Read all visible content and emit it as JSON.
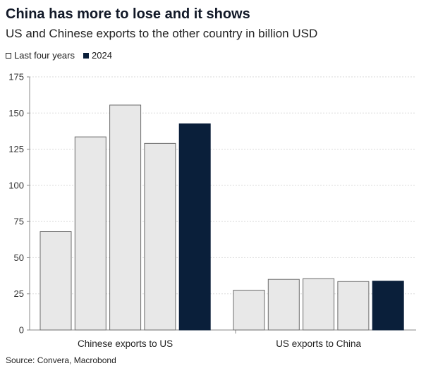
{
  "chart_data": {
    "type": "bar",
    "title": "China has more to lose and it shows",
    "subtitle": "US and Chinese exports to the other country in billion USD",
    "categories": [
      "Chinese exports to US",
      "US exports to China"
    ],
    "series": [
      {
        "name": "Last four years",
        "values": [
          [
            68,
            133.5,
            155.5,
            129
          ],
          [
            27.5,
            35,
            35.5,
            33.5
          ]
        ]
      },
      {
        "name": "2024",
        "values": [
          142.5,
          33.8
        ]
      }
    ],
    "legend": [
      "Last four years",
      "2024"
    ],
    "ylim": [
      0,
      175
    ],
    "yticks": [
      0,
      25,
      50,
      75,
      100,
      125,
      150,
      175
    ],
    "source": "Source: Convera, Macrobond",
    "colors": {
      "historical": "#e8e8e8",
      "historical_edge": "#6b6b6b",
      "current": "#0a1f3a",
      "grid": "#d9d9d9"
    }
  }
}
